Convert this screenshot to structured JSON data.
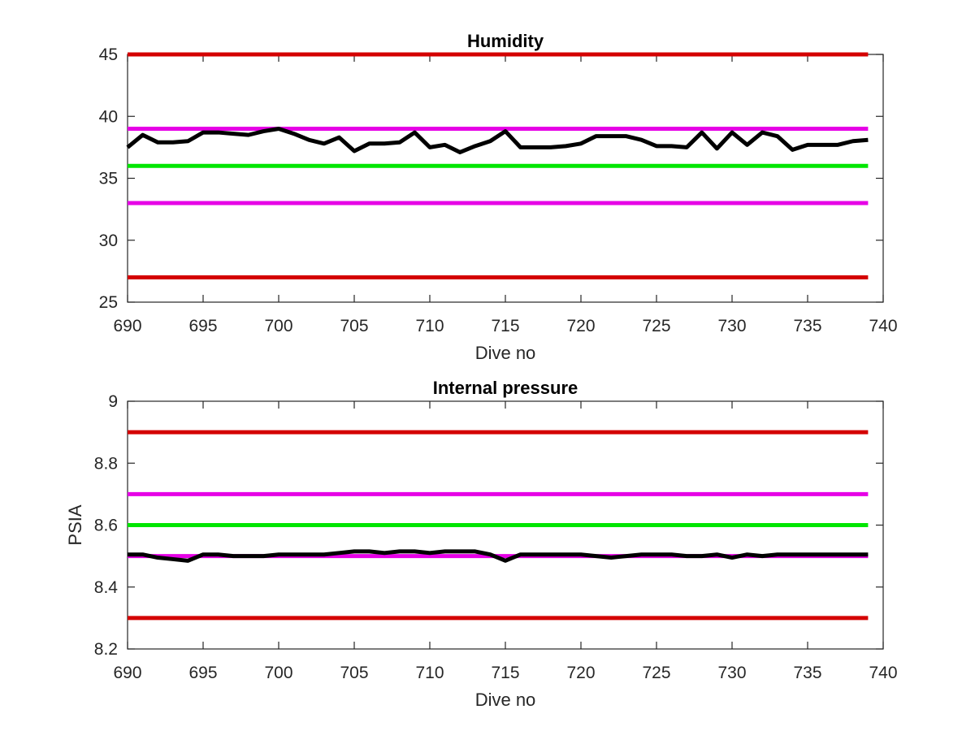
{
  "chart_data": [
    {
      "type": "line",
      "title": "Humidity",
      "xlabel": "Dive no",
      "ylabel": "",
      "xlim": [
        690,
        740
      ],
      "ylim": [
        25,
        45
      ],
      "xticks": [
        "690",
        "695",
        "700",
        "705",
        "710",
        "715",
        "720",
        "725",
        "730",
        "735",
        "740"
      ],
      "yticks": [
        "25",
        "30",
        "35",
        "40",
        "45"
      ],
      "grid": false,
      "reference_lines": [
        {
          "y": 45,
          "color": "#d40000"
        },
        {
          "y": 39,
          "color": "#e600e6"
        },
        {
          "y": 36,
          "color": "#00e600"
        },
        {
          "y": 33,
          "color": "#e600e6"
        },
        {
          "y": 27,
          "color": "#d40000"
        }
      ],
      "series": [
        {
          "color": "#000000",
          "x": [
            690,
            691,
            692,
            693,
            694,
            695,
            696,
            697,
            698,
            699,
            700,
            701,
            702,
            703,
            704,
            705,
            706,
            707,
            708,
            709,
            710,
            711,
            712,
            713,
            714,
            715,
            716,
            717,
            718,
            719,
            720,
            721,
            722,
            723,
            724,
            725,
            726,
            727,
            728,
            729,
            730,
            731,
            732,
            733,
            734,
            735,
            736,
            737,
            738,
            739
          ],
          "y": [
            37.5,
            38.5,
            37.9,
            37.9,
            38.0,
            38.7,
            38.7,
            38.6,
            38.5,
            38.8,
            39.0,
            38.6,
            38.1,
            37.8,
            38.3,
            37.2,
            37.8,
            37.8,
            37.9,
            38.7,
            37.5,
            37.7,
            37.1,
            37.6,
            38.0,
            38.8,
            37.5,
            37.5,
            37.5,
            37.6,
            37.8,
            38.4,
            38.4,
            38.4,
            38.1,
            37.6,
            37.6,
            37.5,
            38.7,
            37.4,
            38.7,
            37.7,
            38.7,
            38.4,
            37.3,
            37.7,
            37.7,
            37.7,
            38.0,
            38.1
          ]
        }
      ]
    },
    {
      "type": "line",
      "title": "Internal pressure",
      "xlabel": "Dive no",
      "ylabel": "PSIA",
      "xlim": [
        690,
        740
      ],
      "ylim": [
        8.2,
        9.0
      ],
      "xticks": [
        "690",
        "695",
        "700",
        "705",
        "710",
        "715",
        "720",
        "725",
        "730",
        "735",
        "740"
      ],
      "yticks": [
        "8.2",
        "8.4",
        "8.6",
        "8.8",
        "9"
      ],
      "grid": false,
      "reference_lines": [
        {
          "y": 8.9,
          "color": "#d40000"
        },
        {
          "y": 8.7,
          "color": "#e600e6"
        },
        {
          "y": 8.6,
          "color": "#00e600"
        },
        {
          "y": 8.5,
          "color": "#e600e6"
        },
        {
          "y": 8.3,
          "color": "#d40000"
        }
      ],
      "series": [
        {
          "color": "#000000",
          "x": [
            690,
            691,
            692,
            693,
            694,
            695,
            696,
            697,
            698,
            699,
            700,
            701,
            702,
            703,
            704,
            705,
            706,
            707,
            708,
            709,
            710,
            711,
            712,
            713,
            714,
            715,
            716,
            717,
            718,
            719,
            720,
            721,
            722,
            723,
            724,
            725,
            726,
            727,
            728,
            729,
            730,
            731,
            732,
            733,
            734,
            735,
            736,
            737,
            738,
            739
          ],
          "y": [
            8.505,
            8.505,
            8.495,
            8.49,
            8.485,
            8.505,
            8.505,
            8.5,
            8.5,
            8.5,
            8.505,
            8.505,
            8.505,
            8.505,
            8.51,
            8.515,
            8.515,
            8.51,
            8.515,
            8.515,
            8.51,
            8.515,
            8.515,
            8.515,
            8.505,
            8.485,
            8.505,
            8.505,
            8.505,
            8.505,
            8.505,
            8.5,
            8.495,
            8.5,
            8.505,
            8.505,
            8.505,
            8.5,
            8.5,
            8.505,
            8.495,
            8.505,
            8.5,
            8.505,
            8.505,
            8.505,
            8.505,
            8.505,
            8.505,
            8.505
          ]
        }
      ]
    }
  ]
}
